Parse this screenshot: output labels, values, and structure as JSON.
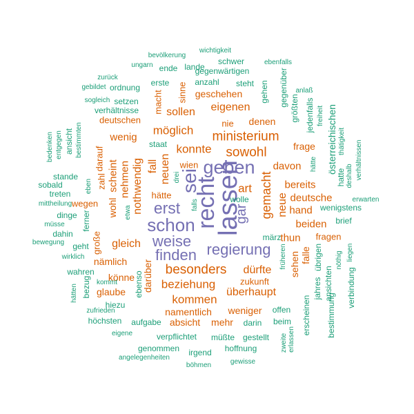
{
  "colors": {
    "purple": "#7570b3",
    "orange": "#d95f02",
    "green": "#1b9e77"
  },
  "words": [
    {
      "text": "recht",
      "color": "purple"
    },
    {
      "text": "lassen",
      "color": "purple"
    },
    {
      "text": "sei",
      "color": "purple"
    },
    {
      "text": "geben",
      "color": "purple"
    },
    {
      "text": "schon",
      "color": "purple"
    },
    {
      "text": "erst",
      "color": "purple"
    },
    {
      "text": "weise",
      "color": "purple"
    },
    {
      "text": "regierung",
      "color": "purple"
    },
    {
      "text": "finden",
      "color": "purple"
    },
    {
      "text": "gar",
      "color": "purple"
    },
    {
      "text": "ministerium",
      "color": "orange"
    },
    {
      "text": "sowohl",
      "color": "orange"
    },
    {
      "text": "gemacht",
      "color": "orange"
    },
    {
      "text": "besonders",
      "color": "orange"
    },
    {
      "text": "dürfte",
      "color": "orange"
    },
    {
      "text": "überhaupt",
      "color": "orange"
    },
    {
      "text": "kommen",
      "color": "orange"
    },
    {
      "text": "beziehung",
      "color": "orange"
    },
    {
      "text": "art",
      "color": "orange"
    },
    {
      "text": "neue",
      "color": "orange"
    },
    {
      "text": "möglich",
      "color": "orange"
    },
    {
      "text": "konnte",
      "color": "orange"
    },
    {
      "text": "eigenen",
      "color": "orange"
    },
    {
      "text": "sollen",
      "color": "orange"
    },
    {
      "text": "geschehen",
      "color": "orange"
    },
    {
      "text": "nothwendig",
      "color": "orange"
    },
    {
      "text": "neuen",
      "color": "orange"
    },
    {
      "text": "fall",
      "color": "orange"
    },
    {
      "text": "wenig",
      "color": "orange"
    },
    {
      "text": "scheint",
      "color": "orange"
    },
    {
      "text": "nehmen",
      "color": "orange"
    },
    {
      "text": "wohl",
      "color": "orange"
    },
    {
      "text": "gleich",
      "color": "orange"
    },
    {
      "text": "davon",
      "color": "orange"
    },
    {
      "text": "bereits",
      "color": "orange"
    },
    {
      "text": "deutsche",
      "color": "orange"
    },
    {
      "text": "hand",
      "color": "orange"
    },
    {
      "text": "beiden",
      "color": "orange"
    },
    {
      "text": "thun",
      "color": "orange"
    },
    {
      "text": "falle",
      "color": "orange"
    },
    {
      "text": "sehen",
      "color": "orange"
    },
    {
      "text": "frage",
      "color": "orange"
    },
    {
      "text": "nämlich",
      "color": "orange"
    },
    {
      "text": "könne",
      "color": "orange"
    },
    {
      "text": "glaube",
      "color": "orange"
    },
    {
      "text": "namentlich",
      "color": "orange"
    },
    {
      "text": "zukunft",
      "color": "orange"
    },
    {
      "text": "weniger",
      "color": "orange"
    },
    {
      "text": "absicht",
      "color": "orange"
    },
    {
      "text": "mehr",
      "color": "orange"
    },
    {
      "text": "darüber",
      "color": "orange"
    },
    {
      "text": "hätte",
      "color": "orange"
    },
    {
      "text": "wien",
      "color": "orange"
    },
    {
      "text": "denen",
      "color": "orange"
    },
    {
      "text": "nie",
      "color": "orange"
    },
    {
      "text": "deutschen",
      "color": "orange"
    },
    {
      "text": "darauf",
      "color": "orange"
    },
    {
      "text": "zahl",
      "color": "orange"
    },
    {
      "text": "wegen",
      "color": "orange"
    },
    {
      "text": "große",
      "color": "orange"
    },
    {
      "text": "macht",
      "color": "orange"
    },
    {
      "text": "sinne",
      "color": "orange"
    },
    {
      "text": "fragen",
      "color": "orange"
    },
    {
      "text": "aufgabe",
      "color": "green"
    },
    {
      "text": "höchsten",
      "color": "green"
    },
    {
      "text": "darin",
      "color": "green"
    },
    {
      "text": "beim",
      "color": "green"
    },
    {
      "text": "offen",
      "color": "green"
    },
    {
      "text": "verpflichtet",
      "color": "green"
    },
    {
      "text": "müßte",
      "color": "green"
    },
    {
      "text": "gestellt",
      "color": "green"
    },
    {
      "text": "hoffnung",
      "color": "green"
    },
    {
      "text": "genommen",
      "color": "green"
    },
    {
      "text": "irgend",
      "color": "green"
    },
    {
      "text": "angelegenheiten",
      "color": "green"
    },
    {
      "text": "gewisse",
      "color": "green"
    },
    {
      "text": "böhmen",
      "color": "green"
    },
    {
      "text": "eigene",
      "color": "green"
    },
    {
      "text": "zufrieden",
      "color": "green"
    },
    {
      "text": "hiezu",
      "color": "green"
    },
    {
      "text": "hätten",
      "color": "green"
    },
    {
      "text": "bezug",
      "color": "green"
    },
    {
      "text": "kommt",
      "color": "green"
    },
    {
      "text": "wahren",
      "color": "green"
    },
    {
      "text": "wirklich",
      "color": "green"
    },
    {
      "text": "geht",
      "color": "green"
    },
    {
      "text": "bewegung",
      "color": "green"
    },
    {
      "text": "dahin",
      "color": "green"
    },
    {
      "text": "müsse",
      "color": "green"
    },
    {
      "text": "dinge",
      "color": "green"
    },
    {
      "text": "mittheilung",
      "color": "green"
    },
    {
      "text": "sobald",
      "color": "green"
    },
    {
      "text": "stande",
      "color": "green"
    },
    {
      "text": "treten",
      "color": "green"
    },
    {
      "text": "ferner",
      "color": "green"
    },
    {
      "text": "eben",
      "color": "green"
    },
    {
      "text": "etwa",
      "color": "green"
    },
    {
      "text": "falls",
      "color": "green"
    },
    {
      "text": "drei",
      "color": "green"
    },
    {
      "text": "wolle",
      "color": "green"
    },
    {
      "text": "märz",
      "color": "green"
    },
    {
      "text": "bedenken",
      "color": "green"
    },
    {
      "text": "entgegen",
      "color": "green"
    },
    {
      "text": "ansicht",
      "color": "green"
    },
    {
      "text": "bestimmten",
      "color": "green"
    },
    {
      "text": "gebildet",
      "color": "green"
    },
    {
      "text": "zurück",
      "color": "green"
    },
    {
      "text": "sogleich",
      "color": "green"
    },
    {
      "text": "verhältnisse",
      "color": "green"
    },
    {
      "text": "ordnung",
      "color": "green"
    },
    {
      "text": "setzen",
      "color": "green"
    },
    {
      "text": "ungarn",
      "color": "green"
    },
    {
      "text": "bevölkerung",
      "color": "green"
    },
    {
      "text": "wichtigkeit",
      "color": "green"
    },
    {
      "text": "ende",
      "color": "green"
    },
    {
      "text": "lande",
      "color": "green"
    },
    {
      "text": "schwer",
      "color": "green"
    },
    {
      "text": "ebenfalls",
      "color": "green"
    },
    {
      "text": "gegenwärtigen",
      "color": "green"
    },
    {
      "text": "erste",
      "color": "green"
    },
    {
      "text": "anzahl",
      "color": "green"
    },
    {
      "text": "steht",
      "color": "green"
    },
    {
      "text": "gehen",
      "color": "green"
    },
    {
      "text": "gegenüber",
      "color": "green"
    },
    {
      "text": "anlaß",
      "color": "green"
    },
    {
      "text": "größten",
      "color": "green"
    },
    {
      "text": "jedenfalls",
      "color": "green"
    },
    {
      "text": "freiheit",
      "color": "green"
    },
    {
      "text": "österreichischen",
      "color": "green"
    },
    {
      "text": "thätigkeit",
      "color": "green"
    },
    {
      "text": "verhältnissen",
      "color": "green"
    },
    {
      "text": "hätte",
      "color": "green"
    },
    {
      "text": "deshalb",
      "color": "green"
    },
    {
      "text": "hatte",
      "color": "green"
    },
    {
      "text": "erwarten",
      "color": "green"
    },
    {
      "text": "wenigstens",
      "color": "green"
    },
    {
      "text": "brief",
      "color": "green"
    },
    {
      "text": "liegen",
      "color": "green"
    },
    {
      "text": "nöthig",
      "color": "green"
    },
    {
      "text": "übrigen",
      "color": "green"
    },
    {
      "text": "früheren",
      "color": "green"
    },
    {
      "text": "jahres",
      "color": "green"
    },
    {
      "text": "ansichten",
      "color": "green"
    },
    {
      "text": "verbindung",
      "color": "green"
    },
    {
      "text": "bestimmung",
      "color": "green"
    },
    {
      "text": "erscheinen",
      "color": "green"
    },
    {
      "text": "zweite",
      "color": "green"
    },
    {
      "text": "erlassen",
      "color": "green"
    },
    {
      "text": "staat",
      "color": "green"
    },
    {
      "text": "ebenso",
      "color": "green"
    }
  ]
}
